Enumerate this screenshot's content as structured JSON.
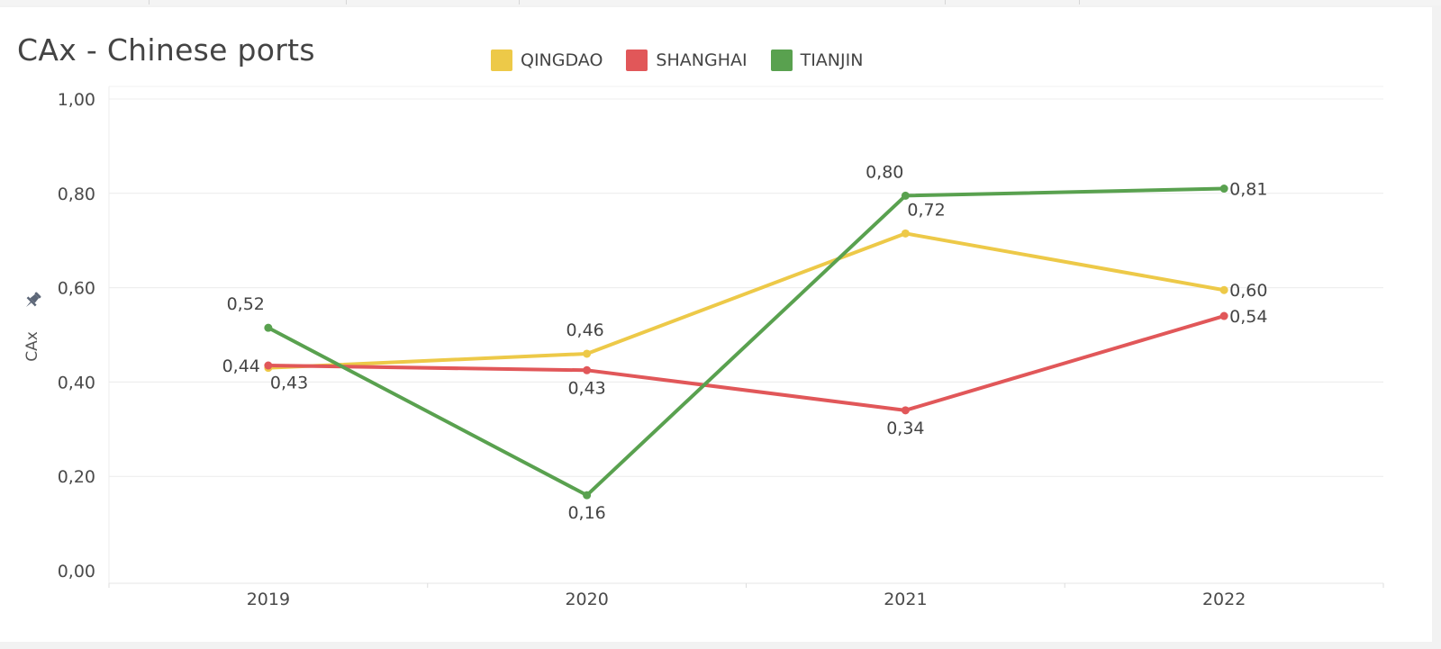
{
  "chart_data": {
    "type": "line",
    "title": "CAx - Chinese ports",
    "xlabel": "",
    "ylabel": "CAx",
    "categories": [
      "2019",
      "2020",
      "2021",
      "2022"
    ],
    "ylim": [
      0,
      1
    ],
    "yticks": [
      0,
      0.2,
      0.4,
      0.6,
      0.8,
      1.0
    ],
    "ytick_labels": [
      "0,00",
      "0,20",
      "0,40",
      "0,60",
      "0,80",
      "1,00"
    ],
    "grid": true,
    "legend": "top",
    "series": [
      {
        "name": "QINGDAO",
        "color": "#EDC948",
        "values": [
          0.43,
          0.46,
          0.715,
          0.595
        ],
        "labels": [
          "0,43",
          "0,46",
          "0,72",
          "0,60"
        ]
      },
      {
        "name": "SHANGHAI",
        "color": "#E15759",
        "values": [
          0.435,
          0.425,
          0.34,
          0.54
        ],
        "labels": [
          "0,44",
          "0,43",
          "0,34",
          "0,54"
        ]
      },
      {
        "name": "TIANJIN",
        "color": "#59A14F",
        "values": [
          0.515,
          0.16,
          0.795,
          0.81
        ],
        "labels": [
          "0,52",
          "0,16",
          "0,80",
          "0,81"
        ]
      }
    ]
  }
}
